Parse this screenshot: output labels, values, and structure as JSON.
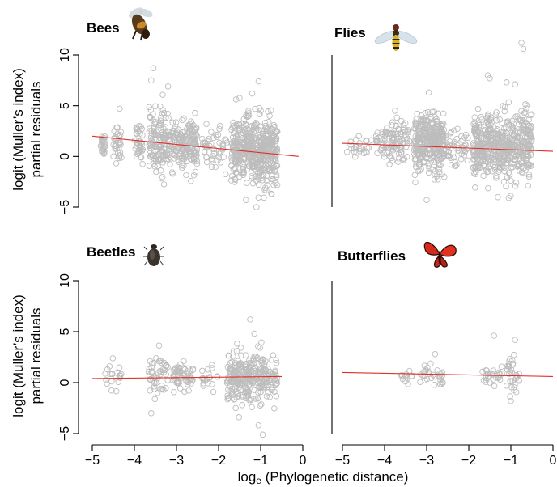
{
  "figure": {
    "ylabel_line1": "logit (Muller’s index)",
    "ylabel_line2": "partial residuals",
    "xlabel_pre": "log",
    "xlabel_sub": "e",
    "xlabel_post": " (Phylogenetic distance)"
  },
  "colors": {
    "points": "#bdbdbd",
    "fit": "#e0302a",
    "axis": "#000000"
  },
  "panel_icons": {
    "Bees": "bee-icon",
    "Flies": "fly-icon",
    "Beetles": "beetle-icon",
    "Butterflies": "butterfly-icon"
  },
  "chart_data": [
    {
      "type": "scatter",
      "title": "Bees",
      "xlim": [
        -5,
        0
      ],
      "ylim": [
        -5,
        10
      ],
      "xticks": [
        -5,
        -4,
        -3,
        -2,
        -1,
        0
      ],
      "yticks": [
        -5,
        0,
        5,
        10
      ],
      "fit_line": {
        "x": [
          -5,
          -0.1
        ],
        "y": [
          2.0,
          0.0
        ]
      },
      "clusters": [
        {
          "x": [
            -4.8,
            -4.7
          ],
          "y_center": 1.2,
          "y_spread": 1.3,
          "n": 25
        },
        {
          "x": [
            -4.5,
            -4.3
          ],
          "y_center": 1.5,
          "y_spread": 2.0,
          "n": 30
        },
        {
          "x": [
            -4.0,
            -3.8
          ],
          "y_center": 1.3,
          "y_spread": 2.0,
          "n": 40
        },
        {
          "x": [
            -3.65,
            -3.3
          ],
          "y_center": 1.5,
          "y_spread": 3.5,
          "n": 110
        },
        {
          "x": [
            -3.3,
            -2.9
          ],
          "y_center": 1.2,
          "y_spread": 2.5,
          "n": 90
        },
        {
          "x": [
            -2.9,
            -2.5
          ],
          "y_center": 1.0,
          "y_spread": 2.6,
          "n": 120
        },
        {
          "x": [
            -2.4,
            -1.8
          ],
          "y_center": 0.8,
          "y_spread": 2.2,
          "n": 50
        },
        {
          "x": [
            -1.7,
            -0.6
          ],
          "y_center": 0.6,
          "y_spread": 3.6,
          "n": 500
        }
      ],
      "outliers": [
        [
          -3.55,
          8.7
        ],
        [
          -3.6,
          7.5
        ],
        [
          -3.2,
          6.9
        ],
        [
          -1.05,
          7.4
        ],
        [
          -1.2,
          6.2
        ],
        [
          -1.1,
          -5.0
        ],
        [
          -1.35,
          -4.3
        ],
        [
          -4.35,
          4.7
        ]
      ]
    },
    {
      "type": "scatter",
      "title": "Flies",
      "xlim": [
        -5,
        0
      ],
      "ylim": [
        -5,
        10
      ],
      "xticks": [
        -5,
        -4,
        -3,
        -2,
        -1,
        0
      ],
      "yticks": [
        -5,
        0,
        5,
        10
      ],
      "fit_line": {
        "x": [
          -5,
          0
        ],
        "y": [
          1.3,
          0.5
        ]
      },
      "clusters": [
        {
          "x": [
            -4.9,
            -4.3
          ],
          "y_center": 1.0,
          "y_spread": 1.2,
          "n": 25
        },
        {
          "x": [
            -4.2,
            -3.9
          ],
          "y_center": 1.2,
          "y_spread": 2.0,
          "n": 35
        },
        {
          "x": [
            -3.9,
            -3.4
          ],
          "y_center": 1.3,
          "y_spread": 2.5,
          "n": 80
        },
        {
          "x": [
            -3.3,
            -2.6
          ],
          "y_center": 1.3,
          "y_spread": 3.0,
          "n": 330
        },
        {
          "x": [
            -2.6,
            -2.0
          ],
          "y_center": 1.0,
          "y_spread": 2.0,
          "n": 60
        },
        {
          "x": [
            -1.9,
            -0.5
          ],
          "y_center": 0.9,
          "y_spread": 3.6,
          "n": 550
        }
      ],
      "outliers": [
        [
          -0.75,
          11.2
        ],
        [
          -0.7,
          10.6
        ],
        [
          -1.55,
          8.0
        ],
        [
          -1.5,
          7.7
        ],
        [
          -1.1,
          7.3
        ],
        [
          -0.9,
          7.1
        ],
        [
          -3.75,
          4.5
        ],
        [
          -2.95,
          6.3
        ],
        [
          -3.0,
          -4.3
        ],
        [
          -1.05,
          -4.1
        ]
      ]
    },
    {
      "type": "scatter",
      "title": "Beetles",
      "xlim": [
        -5,
        0
      ],
      "ylim": [
        -5,
        10
      ],
      "xticks": [
        -5,
        -4,
        -3,
        -2,
        -1,
        0
      ],
      "yticks": [
        -5,
        0,
        5,
        10
      ],
      "fit_line": {
        "x": [
          -5,
          -0.5
        ],
        "y": [
          0.4,
          0.6
        ]
      },
      "clusters": [
        {
          "x": [
            -4.7,
            -4.3
          ],
          "y_center": 0.6,
          "y_spread": 1.5,
          "n": 20
        },
        {
          "x": [
            -3.7,
            -3.2
          ],
          "y_center": 0.5,
          "y_spread": 2.2,
          "n": 50
        },
        {
          "x": [
            -3.1,
            -2.6
          ],
          "y_center": 0.6,
          "y_spread": 1.8,
          "n": 60
        },
        {
          "x": [
            -2.4,
            -2.0
          ],
          "y_center": 0.6,
          "y_spread": 1.0,
          "n": 20
        },
        {
          "x": [
            -1.8,
            -0.6
          ],
          "y_center": 0.6,
          "y_spread": 2.6,
          "n": 320
        }
      ],
      "outliers": [
        [
          -1.25,
          6.2
        ],
        [
          -1.15,
          4.8
        ],
        [
          -3.6,
          -3.0
        ],
        [
          -1.05,
          -4.2
        ],
        [
          -0.95,
          -5.1
        ]
      ]
    },
    {
      "type": "scatter",
      "title": "Butterflies",
      "xlim": [
        -5,
        0
      ],
      "ylim": [
        -5,
        10
      ],
      "xticks": [
        -5,
        -4,
        -3,
        -2,
        -1,
        0
      ],
      "yticks": [
        -5,
        0,
        5,
        10
      ],
      "fit_line": {
        "x": [
          -5,
          0
        ],
        "y": [
          1.0,
          0.6
        ]
      },
      "clusters": [
        {
          "x": [
            -3.6,
            -3.3
          ],
          "y_center": 0.7,
          "y_spread": 0.9,
          "n": 12
        },
        {
          "x": [
            -3.2,
            -2.6
          ],
          "y_center": 0.7,
          "y_spread": 1.4,
          "n": 30
        },
        {
          "x": [
            -1.7,
            -1.2
          ],
          "y_center": 0.6,
          "y_spread": 1.4,
          "n": 30
        },
        {
          "x": [
            -1.1,
            -0.8
          ],
          "y_center": 0.7,
          "y_spread": 1.7,
          "n": 35
        }
      ],
      "outliers": [
        [
          -1.4,
          4.6
        ],
        [
          -0.9,
          4.2
        ],
        [
          -2.8,
          2.8
        ],
        [
          -1.0,
          -1.8
        ]
      ]
    }
  ]
}
